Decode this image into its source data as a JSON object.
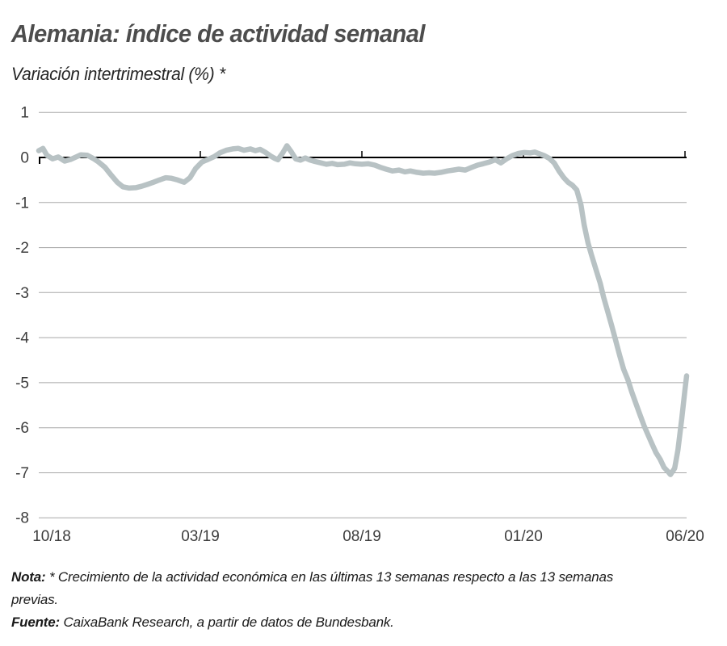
{
  "header": {
    "title": "Alemania: índice de actividad semanal",
    "subtitle": "Variación intertrimestral (%) *"
  },
  "chart_data": {
    "type": "line",
    "title": "Alemania: índice de actividad semanal",
    "subtitle": "Variación intertrimestral (%) *",
    "xlabel": "",
    "ylabel": "Variación intertrimestral (%)",
    "x_unit": "months since 10/2018",
    "xlim": [
      0,
      20.05
    ],
    "ylim": [
      -8,
      1
    ],
    "y_ticks": [
      1,
      0,
      -1,
      -2,
      -3,
      -4,
      -5,
      -6,
      -7,
      -8
    ],
    "x_ticks": [
      {
        "pos": 0,
        "label": "10/18"
      },
      {
        "pos": 5,
        "label": "03/19"
      },
      {
        "pos": 10,
        "label": "08/19"
      },
      {
        "pos": 15,
        "label": "01/20"
      },
      {
        "pos": 20,
        "label": "06/20"
      }
    ],
    "grid": "horizontal",
    "legend": "none",
    "zero_axis": true,
    "series": [
      {
        "name": "Índice de actividad semanal (variación intertrimestral, %)",
        "color": "#b8c2c4",
        "points": [
          [
            0,
            0.15
          ],
          [
            0.13,
            0.2
          ],
          [
            0.25,
            0.05
          ],
          [
            0.43,
            -0.03
          ],
          [
            0.6,
            0.01
          ],
          [
            0.8,
            -0.08
          ],
          [
            1.0,
            -0.04
          ],
          [
            1.18,
            0.02
          ],
          [
            1.3,
            0.06
          ],
          [
            1.5,
            0.05
          ],
          [
            1.68,
            -0.02
          ],
          [
            1.85,
            -0.1
          ],
          [
            2.05,
            -0.22
          ],
          [
            2.25,
            -0.4
          ],
          [
            2.43,
            -0.55
          ],
          [
            2.6,
            -0.65
          ],
          [
            2.8,
            -0.68
          ],
          [
            3.0,
            -0.67
          ],
          [
            3.18,
            -0.64
          ],
          [
            3.35,
            -0.6
          ],
          [
            3.55,
            -0.55
          ],
          [
            3.73,
            -0.5
          ],
          [
            3.93,
            -0.45
          ],
          [
            4.1,
            -0.46
          ],
          [
            4.3,
            -0.5
          ],
          [
            4.5,
            -0.55
          ],
          [
            4.68,
            -0.45
          ],
          [
            4.85,
            -0.25
          ],
          [
            5.05,
            -0.1
          ],
          [
            5.25,
            -0.04
          ],
          [
            5.43,
            0.02
          ],
          [
            5.6,
            0.1
          ],
          [
            5.8,
            0.16
          ],
          [
            6.0,
            0.19
          ],
          [
            6.18,
            0.2
          ],
          [
            6.35,
            0.16
          ],
          [
            6.55,
            0.19
          ],
          [
            6.7,
            0.15
          ],
          [
            6.85,
            0.18
          ],
          [
            7.0,
            0.12
          ],
          [
            7.18,
            0.03
          ],
          [
            7.3,
            -0.02
          ],
          [
            7.4,
            -0.05
          ],
          [
            7.55,
            0.1
          ],
          [
            7.68,
            0.26
          ],
          [
            7.82,
            0.12
          ],
          [
            7.95,
            -0.03
          ],
          [
            8.1,
            -0.06
          ],
          [
            8.25,
            -0.01
          ],
          [
            8.4,
            -0.06
          ],
          [
            8.55,
            -0.09
          ],
          [
            8.73,
            -0.12
          ],
          [
            8.9,
            -0.15
          ],
          [
            9.08,
            -0.13
          ],
          [
            9.25,
            -0.16
          ],
          [
            9.45,
            -0.15
          ],
          [
            9.63,
            -0.12
          ],
          [
            9.8,
            -0.14
          ],
          [
            10.0,
            -0.15
          ],
          [
            10.2,
            -0.14
          ],
          [
            10.4,
            -0.17
          ],
          [
            10.58,
            -0.22
          ],
          [
            10.75,
            -0.26
          ],
          [
            10.95,
            -0.3
          ],
          [
            11.15,
            -0.28
          ],
          [
            11.33,
            -0.32
          ],
          [
            11.5,
            -0.3
          ],
          [
            11.7,
            -0.33
          ],
          [
            11.9,
            -0.35
          ],
          [
            12.08,
            -0.34
          ],
          [
            12.25,
            -0.35
          ],
          [
            12.45,
            -0.33
          ],
          [
            12.65,
            -0.3
          ],
          [
            12.83,
            -0.28
          ],
          [
            13.0,
            -0.26
          ],
          [
            13.2,
            -0.28
          ],
          [
            13.4,
            -0.22
          ],
          [
            13.58,
            -0.17
          ],
          [
            13.75,
            -0.14
          ],
          [
            13.95,
            -0.1
          ],
          [
            14.13,
            -0.05
          ],
          [
            14.3,
            -0.12
          ],
          [
            14.48,
            -0.03
          ],
          [
            14.65,
            0.04
          ],
          [
            14.85,
            0.09
          ],
          [
            15.03,
            0.11
          ],
          [
            15.2,
            0.1
          ],
          [
            15.35,
            0.12
          ],
          [
            15.5,
            0.08
          ],
          [
            15.65,
            0.04
          ],
          [
            15.8,
            -0.02
          ],
          [
            15.95,
            -0.12
          ],
          [
            16.1,
            -0.3
          ],
          [
            16.25,
            -0.45
          ],
          [
            16.38,
            -0.55
          ],
          [
            16.52,
            -0.62
          ],
          [
            16.65,
            -0.72
          ],
          [
            16.78,
            -1.05
          ],
          [
            16.88,
            -1.5
          ],
          [
            17.0,
            -1.9
          ],
          [
            17.1,
            -2.15
          ],
          [
            17.25,
            -2.5
          ],
          [
            17.38,
            -2.8
          ],
          [
            17.48,
            -3.1
          ],
          [
            17.6,
            -3.4
          ],
          [
            17.73,
            -3.73
          ],
          [
            17.85,
            -4.05
          ],
          [
            17.98,
            -4.4
          ],
          [
            18.1,
            -4.7
          ],
          [
            18.23,
            -4.93
          ],
          [
            18.35,
            -5.2
          ],
          [
            18.48,
            -5.46
          ],
          [
            18.6,
            -5.7
          ],
          [
            18.73,
            -5.95
          ],
          [
            18.85,
            -6.15
          ],
          [
            18.98,
            -6.36
          ],
          [
            19.1,
            -6.55
          ],
          [
            19.23,
            -6.7
          ],
          [
            19.35,
            -6.88
          ],
          [
            19.48,
            -6.98
          ],
          [
            19.55,
            -7.04
          ],
          [
            19.68,
            -6.9
          ],
          [
            19.78,
            -6.5
          ],
          [
            19.9,
            -5.8
          ],
          [
            20.0,
            -5.15
          ],
          [
            20.05,
            -4.85
          ]
        ]
      }
    ]
  },
  "footer": {
    "note_label": "Nota:",
    "note_line1": "* Crecimiento de la actividad económica en las últimas 13 semanas respecto a las 13 semanas",
    "note_line2": "previas.",
    "note_full": "Nota: * Crecimiento de la actividad económica en las últimas 13 semanas respecto a las 13 semanas previas.",
    "source_label": "Fuente:",
    "source_text": "CaixaBank Research, a partir de datos de Bundesbank."
  },
  "colors": {
    "line": "#b8c2c4",
    "grid": "#a8a8a8",
    "zero_axis": "#000000",
    "axis_text": "#3d3d3d",
    "title_text": "#4d4d4d",
    "body_text": "#1a1a1a",
    "background": "#ffffff"
  }
}
